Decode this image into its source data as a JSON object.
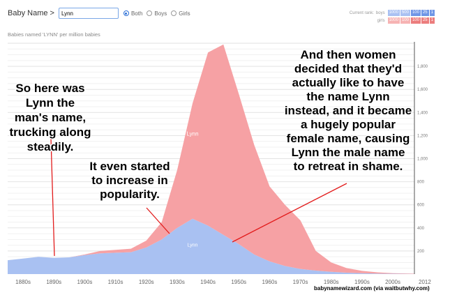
{
  "controls": {
    "label": "Baby Name >",
    "name_value": "Lynn",
    "options": [
      "Both",
      "Boys",
      "Girls"
    ],
    "selected": "Both"
  },
  "rank_legend": {
    "title": "Current rank:",
    "boys": {
      "label": "boys",
      "cells": [
        "1000",
        "500",
        "100",
        "25",
        "1"
      ]
    },
    "girls": {
      "label": "girls",
      "cells": [
        "1000",
        "100",
        "100",
        "25",
        "1"
      ]
    }
  },
  "subtitle": "Babies named 'LYNN' per million babies",
  "chart_data": {
    "type": "area",
    "stacked": true,
    "x": [
      1880,
      1885,
      1890,
      1895,
      1900,
      1905,
      1910,
      1915,
      1920,
      1925,
      1930,
      1935,
      1940,
      1945,
      1950,
      1955,
      1960,
      1965,
      1970,
      1975,
      1980,
      1985,
      1990,
      1995,
      2000,
      2005,
      2012
    ],
    "series": [
      {
        "name": "Lynn",
        "values": [
          120,
          135,
          150,
          140,
          145,
          165,
          180,
          185,
          190,
          230,
          300,
          400,
          480,
          420,
          340,
          260,
          170,
          110,
          70,
          45,
          30,
          20,
          12,
          8,
          5,
          3,
          2
        ]
      },
      {
        "name": "Lynn",
        "values": [
          0,
          0,
          0,
          0,
          0,
          5,
          20,
          25,
          30,
          60,
          150,
          500,
          1000,
          1500,
          1650,
          1300,
          950,
          650,
          530,
          420,
          170,
          80,
          40,
          20,
          10,
          5,
          3
        ]
      }
    ],
    "series_colors": [
      "#a9c1f2",
      "#f6a1a4"
    ],
    "series_label_positions": [
      [
        1940,
        240
      ],
      [
        1940,
        1200
      ]
    ],
    "x_ticks": [
      1880,
      1890,
      1900,
      1910,
      1920,
      1930,
      1940,
      1950,
      1960,
      1970,
      1980,
      1990,
      2000
    ],
    "x_tick_labels": [
      "1880s",
      "1890s",
      "1900s",
      "1910s",
      "1920s",
      "1930s",
      "1940s",
      "1950s",
      "1960s",
      "1970s",
      "1980s",
      "1990s",
      "2000s"
    ],
    "x_end_label": "2012",
    "y_ticks": [
      200,
      400,
      600,
      800,
      1000,
      1200,
      1400,
      1600,
      1800
    ],
    "y_tick_labels": [
      "200",
      "400",
      "600",
      "800",
      "1,000",
      "1,200",
      "1,400",
      "1,600",
      "1,800"
    ],
    "xlim": [
      1880,
      2012
    ],
    "ylim": [
      0,
      2000
    ],
    "grid": true
  },
  "annotations": [
    {
      "lines": [
        "So here was",
        "Lynn the",
        "man's name,",
        "trucking along",
        "steadily."
      ]
    },
    {
      "lines": [
        "It even started",
        "to increase in",
        "popularity."
      ]
    },
    {
      "lines": [
        "And then women",
        "decided that they'd",
        "actually like to have",
        "the name Lynn",
        "instead, and it became",
        "a hugely popular",
        "female name, causing",
        "Lynn the male name",
        "to retreat in shame."
      ]
    }
  ],
  "source": "babynamewizard.com (via waitbutwhy.com)"
}
